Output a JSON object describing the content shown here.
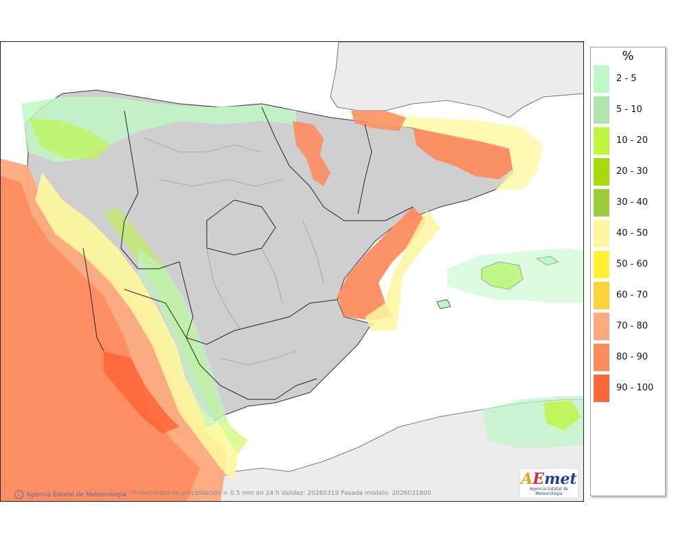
{
  "map": {
    "credit": "Agencia Estatal de Meteorología",
    "caption": "Probabilidad de precipitación > 0.5 mm en 24 h Validez: 20260319 Pasada modelo: 2026031800",
    "logo": {
      "a": "A",
      "e": "E",
      "met": "met",
      "subtitle": "Agencia Estatal de Meteorología"
    }
  },
  "legend": {
    "title": "%",
    "items": [
      {
        "label": "2 - 5",
        "color": "#bff7c6"
      },
      {
        "label": "5 - 10",
        "color": "#b0e3b0"
      },
      {
        "label": "10 - 20",
        "color": "#bff53e"
      },
      {
        "label": "20 - 30",
        "color": "#a7dc0a"
      },
      {
        "label": "30 - 40",
        "color": "#9ccc36"
      },
      {
        "label": "40 - 50",
        "color": "#fff79d"
      },
      {
        "label": "50 - 60",
        "color": "#fff235"
      },
      {
        "label": "60 - 70",
        "color": "#fdd33b"
      },
      {
        "label": "70 - 80",
        "color": "#fca97d"
      },
      {
        "label": "80 - 90",
        "color": "#fd8c5f"
      },
      {
        "label": "90 - 100",
        "color": "#fe6539"
      }
    ]
  },
  "colors": {
    "land_gray": "#cfcfcf",
    "foreign_land": "#ececec",
    "sea": "#ffffff"
  }
}
